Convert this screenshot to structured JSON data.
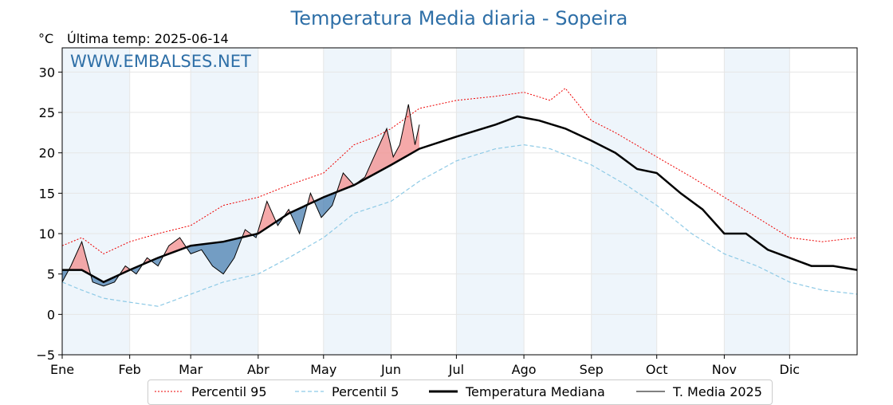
{
  "header": {
    "title": "Temperatura Media diaria - Sopeira",
    "unit": "°C",
    "last_temp": "Última temp: 2025-06-14",
    "watermark": "WWW.EMBALSES.NET"
  },
  "colors": {
    "p95": "#ee0000",
    "p5": "#8ecae6",
    "median": "#000000",
    "year": "#000000",
    "above_fill": "#f28c8c",
    "below_fill": "#4a7fb0",
    "band": "#eef5fb",
    "title": "#2e6fa7"
  },
  "legend": [
    {
      "key": "p95",
      "label": "Percentil 95",
      "style": "dotted-red"
    },
    {
      "key": "p5",
      "label": "Percentil 5",
      "style": "dashed-lightblue"
    },
    {
      "key": "median",
      "label": "Temperatura Mediana",
      "style": "thick-black"
    },
    {
      "key": "year",
      "label": "T. Media 2025",
      "style": "thin-black"
    }
  ],
  "chart_data": {
    "type": "line",
    "title": "Temperatura Media diaria - Sopeira",
    "ylabel": "°C",
    "xlabel": "",
    "ylim": [
      -5,
      33
    ],
    "xlim": [
      1,
      366
    ],
    "y_ticks": [
      -5,
      0,
      5,
      10,
      15,
      20,
      25,
      30
    ],
    "x_ticks": [
      {
        "label": "Ene",
        "day": 1
      },
      {
        "label": "Feb",
        "day": 32
      },
      {
        "label": "Mar",
        "day": 60
      },
      {
        "label": "Abr",
        "day": 91
      },
      {
        "label": "May",
        "day": 121
      },
      {
        "label": "Jun",
        "day": 152
      },
      {
        "label": "Jul",
        "day": 182
      },
      {
        "label": "Ago",
        "day": 213
      },
      {
        "label": "Sep",
        "day": 244
      },
      {
        "label": "Oct",
        "day": 274
      },
      {
        "label": "Nov",
        "day": 305
      },
      {
        "label": "Dic",
        "day": 335
      }
    ],
    "shaded_months": [
      [
        1,
        32
      ],
      [
        60,
        91
      ],
      [
        121,
        152
      ],
      [
        182,
        213
      ],
      [
        244,
        274
      ],
      [
        305,
        335
      ]
    ],
    "grid": true,
    "legend_position": "bottom",
    "series": [
      {
        "name": "Percentil 95",
        "x": [
          1,
          10,
          20,
          32,
          45,
          60,
          75,
          91,
          105,
          121,
          135,
          145,
          152,
          165,
          182,
          200,
          213,
          225,
          232,
          244,
          255,
          274,
          290,
          305,
          320,
          335,
          350,
          366
        ],
        "y": [
          8.5,
          9.5,
          7.5,
          9.0,
          10.0,
          11.0,
          13.5,
          14.5,
          16.0,
          17.5,
          21.0,
          22.0,
          23.0,
          25.5,
          26.5,
          27.0,
          27.5,
          26.5,
          28.0,
          24.0,
          22.5,
          19.5,
          17.0,
          14.5,
          12.0,
          9.5,
          9.0,
          9.5
        ]
      },
      {
        "name": "Percentil 5",
        "x": [
          1,
          10,
          20,
          32,
          45,
          60,
          75,
          91,
          105,
          121,
          135,
          152,
          165,
          182,
          200,
          213,
          225,
          244,
          260,
          274,
          290,
          305,
          320,
          335,
          350,
          366
        ],
        "y": [
          4.0,
          3.0,
          2.0,
          1.5,
          1.0,
          2.5,
          4.0,
          5.0,
          7.0,
          9.5,
          12.5,
          14.0,
          16.5,
          19.0,
          20.5,
          21.0,
          20.5,
          18.5,
          16.0,
          13.5,
          10.0,
          7.5,
          6.0,
          4.0,
          3.0,
          2.5
        ]
      },
      {
        "name": "Temperatura Mediana",
        "x": [
          1,
          10,
          20,
          32,
          45,
          60,
          75,
          91,
          105,
          121,
          135,
          152,
          165,
          182,
          200,
          210,
          220,
          232,
          244,
          255,
          265,
          274,
          285,
          295,
          305,
          315,
          325,
          335,
          345,
          355,
          366
        ],
        "y": [
          5.5,
          5.5,
          4.0,
          5.5,
          7.0,
          8.5,
          9.0,
          10.0,
          12.5,
          14.5,
          16.0,
          18.5,
          20.5,
          22.0,
          23.5,
          24.5,
          24.0,
          23.0,
          21.5,
          20.0,
          18.0,
          17.5,
          15.0,
          13.0,
          10.0,
          10.0,
          8.0,
          7.0,
          6.0,
          6.0,
          5.5
        ]
      },
      {
        "name": "T. Media 2025",
        "x": [
          1,
          5,
          10,
          15,
          20,
          25,
          30,
          35,
          40,
          45,
          50,
          55,
          60,
          65,
          70,
          75,
          80,
          85,
          90,
          95,
          100,
          105,
          110,
          115,
          120,
          125,
          130,
          135,
          140,
          145,
          150,
          153,
          156,
          160,
          163,
          165
        ],
        "y": [
          4.0,
          6.0,
          9.0,
          4.0,
          3.5,
          4.0,
          6.0,
          5.0,
          7.0,
          6.0,
          8.5,
          9.5,
          7.5,
          8.0,
          6.0,
          5.0,
          7.0,
          10.5,
          9.5,
          14.0,
          11.0,
          13.0,
          10.0,
          15.0,
          12.0,
          13.5,
          17.5,
          16.0,
          17.0,
          20.0,
          23.0,
          19.5,
          21.0,
          26.0,
          21.0,
          23.5
        ]
      }
    ]
  }
}
